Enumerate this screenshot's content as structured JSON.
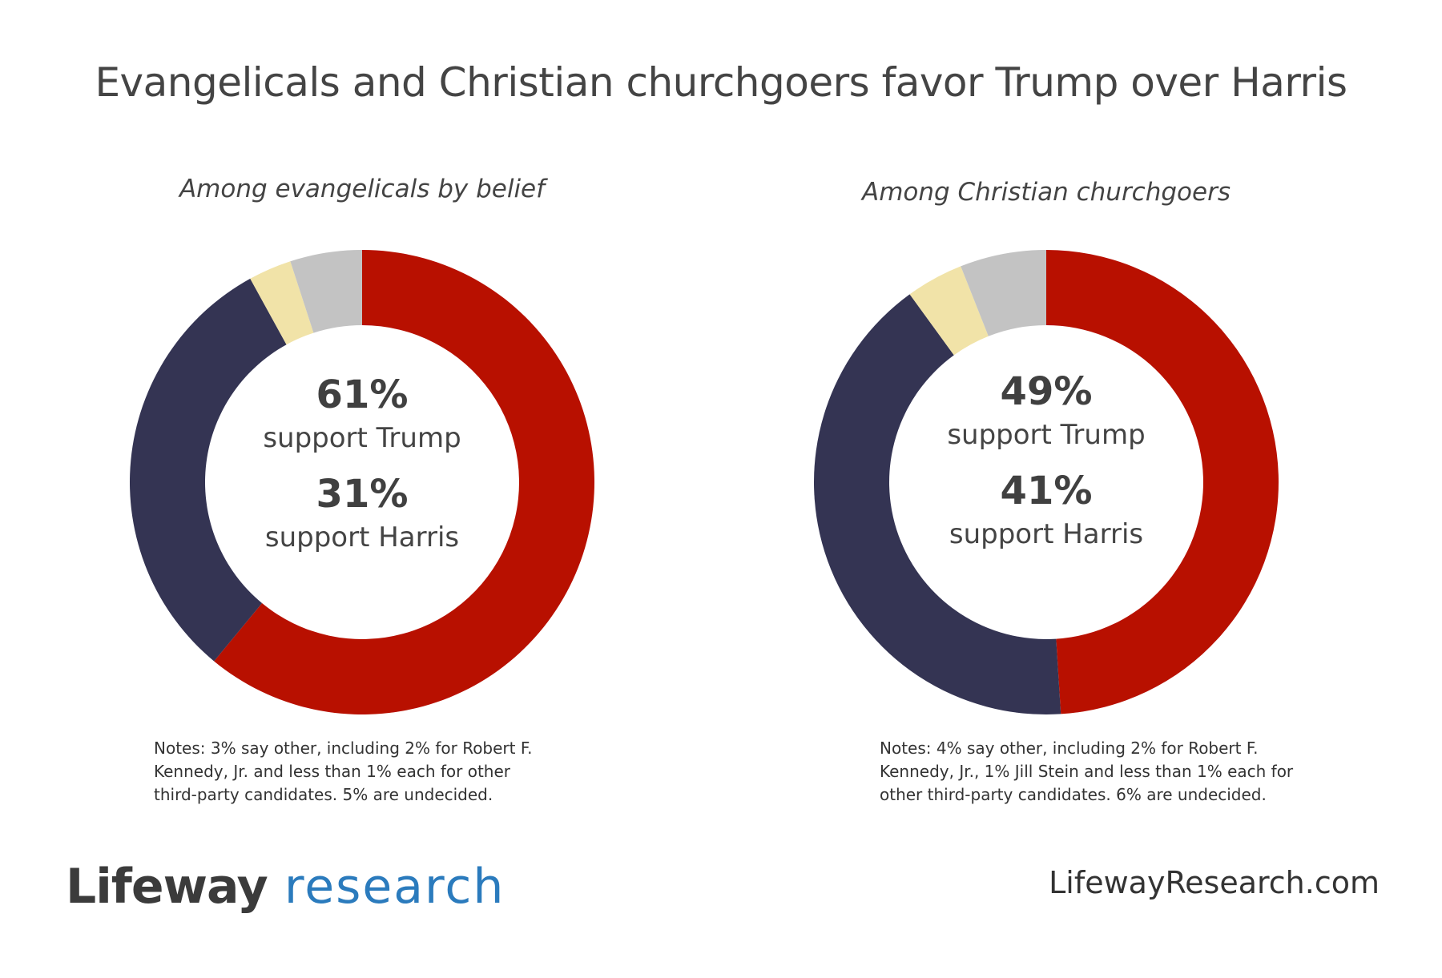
{
  "title": "Evangelicals and Christian churchgoers favor Trump over Harris",
  "colors": {
    "trump": "#b81000",
    "harris": "#343453",
    "other": "#f1e3a8",
    "undecided": "#c3c3c3"
  },
  "chart_data": [
    {
      "type": "pie",
      "subtitle": "Among evangelicals by belief",
      "slices": [
        {
          "name": "Trump",
          "value": 61
        },
        {
          "name": "Harris",
          "value": 31
        },
        {
          "name": "Other",
          "value": 3
        },
        {
          "name": "Undecided",
          "value": 5
        }
      ],
      "center": {
        "trump_pct": "61%",
        "trump_label": "support Trump",
        "harris_pct": "31%",
        "harris_label": "support Harris"
      },
      "notes": "Notes: 3% say other, including 2% for Robert F. Kennedy, Jr. and less than 1% each for other third-party candidates. 5% are undecided."
    },
    {
      "type": "pie",
      "subtitle": "Among Christian churchgoers",
      "slices": [
        {
          "name": "Trump",
          "value": 49
        },
        {
          "name": "Harris",
          "value": 41
        },
        {
          "name": "Other",
          "value": 4
        },
        {
          "name": "Undecided",
          "value": 6
        }
      ],
      "center": {
        "trump_pct": "49%",
        "trump_label": "support Trump",
        "harris_pct": "41%",
        "harris_label": "support Harris"
      },
      "notes": "Notes: 4% say other, including 2% for Robert F. Kennedy, Jr., 1% Jill Stein and less than 1% each for other third-party candidates. 6% are undecided."
    }
  ],
  "footer": {
    "logo_part1": "Lifeway",
    "logo_part2": " research",
    "site": "LifewayResearch.com"
  }
}
